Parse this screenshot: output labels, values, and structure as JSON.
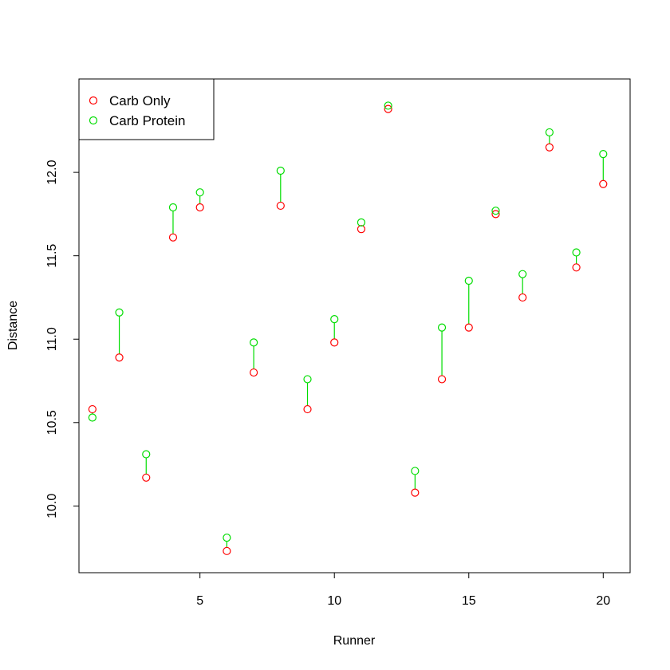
{
  "chart_data": {
    "type": "scatter",
    "title": "",
    "xlabel": "Runner",
    "ylabel": "Distance",
    "xlim": [
      0.5,
      21.0
    ],
    "ylim": [
      9.6,
      12.56
    ],
    "x_ticks": [
      5,
      10,
      15,
      20
    ],
    "y_ticks": [
      10.0,
      10.5,
      11.0,
      11.5,
      12.0
    ],
    "x_tick_labels": [
      "5",
      "10",
      "15",
      "20"
    ],
    "y_tick_labels": [
      "10.0",
      "10.5",
      "11.0",
      "11.5",
      "12.0"
    ],
    "grid": false,
    "legend_position": "top-left",
    "x": [
      1,
      2,
      3,
      4,
      5,
      6,
      7,
      8,
      9,
      10,
      11,
      12,
      13,
      14,
      15,
      16,
      17,
      18,
      19,
      20
    ],
    "series": [
      {
        "name": "Carb Only",
        "color": "#ff0000",
        "values": [
          10.58,
          10.89,
          10.17,
          11.61,
          11.79,
          9.73,
          10.8,
          11.8,
          10.58,
          10.98,
          11.66,
          12.38,
          10.08,
          10.76,
          11.07,
          11.75,
          11.25,
          12.15,
          11.43,
          11.93
        ]
      },
      {
        "name": "Carb Protein",
        "color": "#00dd00",
        "values": [
          10.53,
          11.16,
          10.31,
          11.79,
          11.88,
          9.81,
          10.98,
          12.01,
          10.76,
          11.12,
          11.7,
          12.4,
          10.21,
          11.07,
          11.35,
          11.77,
          11.39,
          12.24,
          11.52,
          12.11
        ]
      }
    ],
    "segment_color": "#00dd00"
  }
}
